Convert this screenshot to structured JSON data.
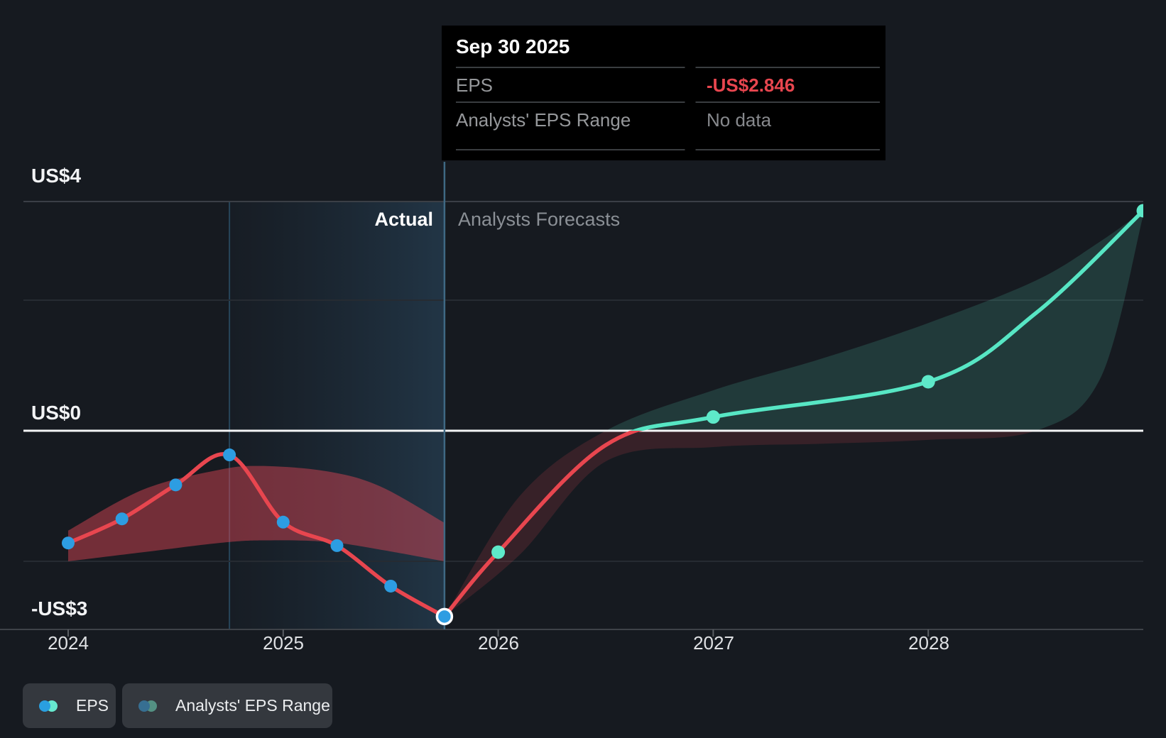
{
  "tooltip": {
    "date": "Sep 30 2025",
    "rows": [
      {
        "label": "EPS",
        "value": "-US$2.846",
        "value_color": "#e8464f"
      },
      {
        "label": "Analysts' EPS Range",
        "value": "No data",
        "value_color": "#87898d"
      }
    ]
  },
  "labels": {
    "actual": "Actual",
    "forecast": "Analysts Forecasts"
  },
  "legend": [
    {
      "label": "EPS",
      "dot_left": "#2a9fe0",
      "dot_right": "#67e9cf"
    },
    {
      "label": "Analysts' EPS Range",
      "dot_left": "#376f92",
      "dot_right": "#549183"
    }
  ],
  "colors": {
    "background": "#161a20",
    "line_negative": "#e8464f",
    "line_positive": "#57e6c4",
    "actual_dot": "#2d9de2",
    "forecast_dot": "#5ee9c9",
    "zero_line": "#f3f4f5",
    "band_actual": "rgba(229,72,86,0.45)",
    "band_forecast_negative": "rgba(229,72,86,0.16)",
    "band_forecast_positive": "rgba(94,233,201,0.16)",
    "today_line": "#3f6984"
  },
  "chart_data": {
    "type": "line",
    "title": "EPS: Actual vs Analysts Forecasts",
    "currency": "US$",
    "x_tick_labels": [
      "2024",
      "2025",
      "2026",
      "2027",
      "2028"
    ],
    "x_tick_positions": [
      2024,
      2025,
      2026,
      2027,
      2028
    ],
    "xlim": [
      2023.79,
      2029.02
    ],
    "ylim": [
      -3.3,
      4.1
    ],
    "y_axis_labels": [
      {
        "text": "US$4",
        "value": 4
      },
      {
        "text": "US$0",
        "value": 0
      },
      {
        "text": "-US$3",
        "value": -3
      }
    ],
    "unlabeled_gridlines": [
      2,
      -2
    ],
    "today": {
      "x": 2025.75,
      "date": "Sep 30 2025",
      "eps": -2.846
    },
    "highlight_span": [
      2024.75,
      2025.75
    ],
    "series": [
      {
        "name": "EPS",
        "segment": "actual",
        "x": [
          2024.0,
          2024.25,
          2024.5,
          2024.75,
          2025.0,
          2025.25,
          2025.5,
          2025.75
        ],
        "values": [
          -1.72,
          -1.35,
          -0.83,
          -0.37,
          -1.4,
          -1.76,
          -2.38,
          -2.846
        ],
        "dates": [
          "Dec 31 2023",
          "Mar 31 2024",
          "Jun 30 2024",
          "Sep 30 2024",
          "Dec 31 2024",
          "Mar 31 2025",
          "Jun 30 2025",
          "Sep 30 2025"
        ]
      },
      {
        "name": "EPS",
        "segment": "forecast",
        "x": [
          2025.75,
          2026.0,
          2026.5,
          2027.0,
          2028.0,
          2028.5,
          2029.0
        ],
        "values": [
          -2.846,
          -1.86,
          -0.22,
          0.21,
          0.75,
          1.8,
          3.37
        ],
        "dot_x": [
          2026.0,
          2027.0,
          2028.0,
          2029.0
        ]
      }
    ],
    "bands": [
      {
        "name": "Analysts' EPS Range",
        "segment": "actual",
        "x": [
          2024.0,
          2024.35,
          2024.7,
          2024.9,
          2025.2,
          2025.45,
          2025.75
        ],
        "upper": [
          -1.53,
          -0.9,
          -0.6,
          -0.54,
          -0.62,
          -0.85,
          -1.41
        ],
        "lower": [
          -2.0,
          -1.86,
          -1.72,
          -1.68,
          -1.7,
          -1.82,
          -2.0
        ]
      },
      {
        "name": "Analysts' EPS Range",
        "segment": "forecast",
        "x": [
          2025.75,
          2026.1,
          2026.5,
          2027.0,
          2027.5,
          2028.0,
          2028.5,
          2028.8,
          2029.0
        ],
        "upper": [
          -2.846,
          -1.0,
          0.0,
          0.62,
          1.1,
          1.65,
          2.3,
          2.9,
          3.37
        ],
        "lower": [
          -2.846,
          -1.9,
          -0.47,
          -0.25,
          -0.2,
          -0.14,
          0.0,
          0.8,
          3.3
        ]
      }
    ]
  }
}
